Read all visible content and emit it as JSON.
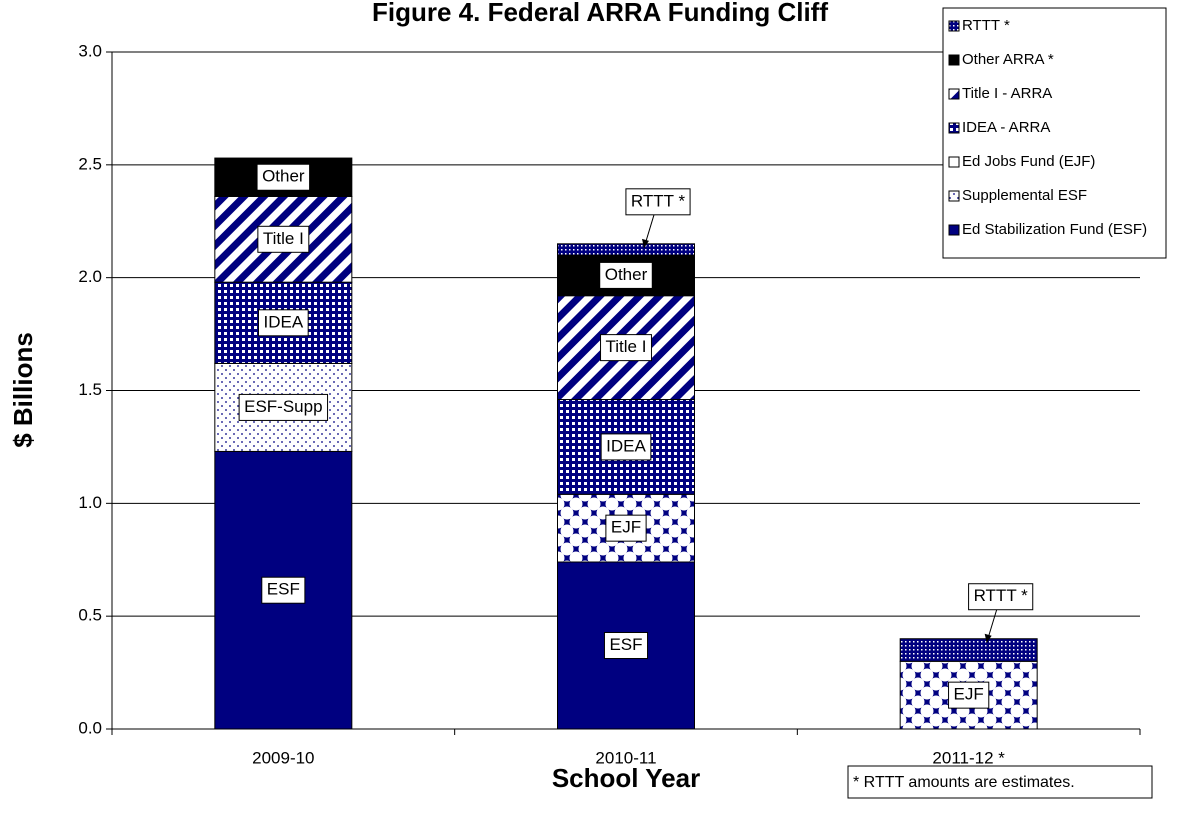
{
  "chart_data": {
    "type": "stacked_bar",
    "title": "Figure 4.  Federal ARRA Funding Cliff",
    "x_label": "School Year",
    "y_label": "$ Billions",
    "categories": [
      "2009-10",
      "2010-11",
      "2011-12 *"
    ],
    "series": [
      {
        "name": "Ed Stabilization Fund (ESF)",
        "label": "ESF",
        "color": "#000080",
        "pattern": "solid",
        "values": [
          1.23,
          0.74,
          null
        ]
      },
      {
        "name": "Supplemental ESF",
        "label": "ESF-Supp",
        "color": "#000080",
        "pattern": "dots",
        "values": [
          0.39,
          null,
          null
        ]
      },
      {
        "name": "Ed Jobs Fund (EJF)",
        "label": "EJF",
        "color": "#000080",
        "pattern": "diamonds",
        "values": [
          null,
          0.3,
          0.3
        ]
      },
      {
        "name": "IDEA - ARRA",
        "label": "IDEA",
        "color": "#000080",
        "pattern": "grid",
        "values": [
          0.36,
          0.42,
          null
        ]
      },
      {
        "name": "Title I - ARRA",
        "label": "Title I",
        "color": "#000080",
        "pattern": "diagonal",
        "values": [
          0.38,
          0.46,
          null
        ]
      },
      {
        "name": "Other ARRA *",
        "label": "Other",
        "color": "#000000",
        "pattern": "solid",
        "values": [
          0.17,
          0.18,
          null
        ]
      },
      {
        "name": "RTTT *",
        "label": "RTTT *",
        "color": "#000080",
        "pattern": "finedots",
        "callout": true,
        "values": [
          null,
          0.05,
          0.1
        ]
      }
    ],
    "ylim": [
      0,
      3.0
    ],
    "yticks": [
      {
        "value": 0,
        "label": "0.0"
      },
      {
        "value": 0.5,
        "label": "0.5"
      },
      {
        "value": 1.0,
        "label": "1.0"
      },
      {
        "value": 1.5,
        "label": "1.5"
      },
      {
        "value": 2.0,
        "label": "2.0"
      },
      {
        "value": 2.5,
        "label": "2.5"
      },
      {
        "value": 3.0,
        "label": "3.0"
      }
    ],
    "grid": true,
    "legend": "top-right",
    "annotation": "* RTTT amounts are estimates."
  }
}
